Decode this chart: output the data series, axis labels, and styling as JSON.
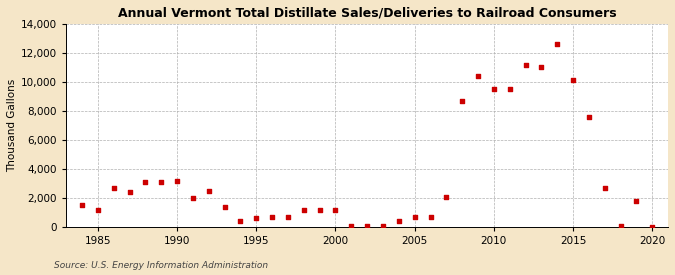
{
  "title": "Annual Vermont Total Distillate Sales/Deliveries to Railroad Consumers",
  "ylabel": "Thousand Gallons",
  "source": "Source: U.S. Energy Information Administration",
  "background_color": "#f5e6c8",
  "plot_background_color": "#ffffff",
  "marker_color": "#cc0000",
  "marker": "s",
  "marker_size": 3.5,
  "xlim": [
    1983,
    2021
  ],
  "ylim": [
    0,
    14000
  ],
  "yticks": [
    0,
    2000,
    4000,
    6000,
    8000,
    10000,
    12000,
    14000
  ],
  "xticks": [
    1985,
    1990,
    1995,
    2000,
    2005,
    2010,
    2015,
    2020
  ],
  "data": {
    "years": [
      1984,
      1985,
      1986,
      1987,
      1988,
      1989,
      1990,
      1991,
      1992,
      1993,
      1994,
      1995,
      1996,
      1997,
      1998,
      1999,
      2000,
      2001,
      2002,
      2003,
      2004,
      2005,
      2006,
      2007,
      2008,
      2009,
      2010,
      2011,
      2012,
      2013,
      2014,
      2015,
      2016,
      2017,
      2018,
      2019,
      2020
    ],
    "values": [
      1500,
      1200,
      2700,
      2400,
      3100,
      3100,
      3200,
      2000,
      2500,
      1400,
      400,
      600,
      700,
      700,
      1200,
      1200,
      1200,
      100,
      100,
      100,
      400,
      700,
      700,
      2100,
      8700,
      10400,
      9500,
      9500,
      11200,
      11000,
      12600,
      10100,
      7600,
      2700,
      100,
      1800,
      0
    ]
  },
  "title_fontsize": 9,
  "ylabel_fontsize": 7.5,
  "tick_fontsize": 7.5,
  "source_fontsize": 6.5
}
